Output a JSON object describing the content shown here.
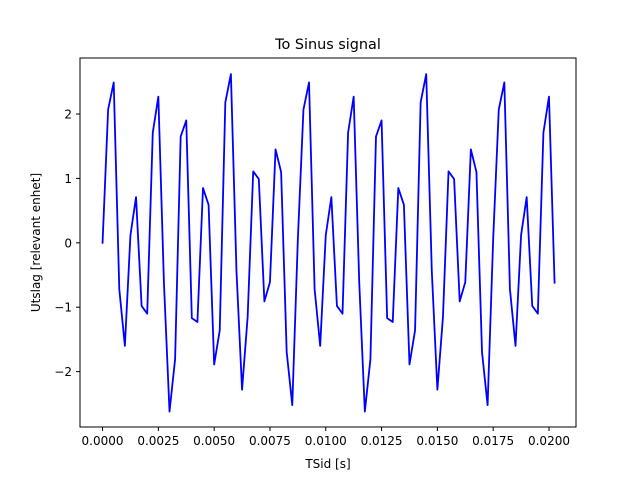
{
  "chart_data": {
    "type": "line",
    "title": "To Sinus signal",
    "xlabel": "TSid [s]",
    "ylabel": "Utslag [relevant enhet]",
    "xlim": [
      -0.00101,
      0.02121
    ],
    "ylim": [
      -2.86,
      2.87
    ],
    "xticks": [
      0.0,
      0.0025,
      0.005,
      0.0075,
      0.01,
      0.0125,
      0.015,
      0.0175,
      0.02
    ],
    "xtick_labels": [
      "0.0000",
      "0.0025",
      "0.0050",
      "0.0075",
      "0.0100",
      "0.0125",
      "0.0150",
      "0.0175",
      "0.0200"
    ],
    "yticks": [
      -2,
      -1,
      0,
      1,
      2
    ],
    "ytick_labels": [
      "−2",
      "−1",
      "0",
      "1",
      "2"
    ],
    "grid": false,
    "series": [
      {
        "color": "#0000ff",
        "sample_interval_s": 0.00025,
        "x_start": 0.0,
        "x_end": 0.02025,
        "values": [
          0.0,
          2.07,
          2.49,
          -0.72,
          -1.6,
          0.12,
          0.71,
          -0.98,
          -1.1,
          1.71,
          2.27,
          -0.62,
          -2.62,
          -1.81,
          1.65,
          1.9,
          -1.17,
          -1.23,
          0.85,
          0.59,
          -1.89,
          -1.36,
          2.18,
          2.62,
          -0.44,
          -2.28,
          -1.15,
          1.11,
          0.99,
          -0.91,
          -0.61,
          1.45,
          1.1,
          -1.7,
          -2.52,
          0.06,
          2.07,
          2.49,
          -0.72,
          -1.6,
          0.12,
          0.71,
          -0.98,
          -1.1,
          1.71,
          2.27,
          -0.62,
          -2.62,
          -1.81,
          1.65,
          1.9,
          -1.17,
          -1.23,
          0.85,
          0.59,
          -1.89,
          -1.36,
          2.18,
          2.62,
          -0.44,
          -2.28,
          -1.15,
          1.11,
          0.99,
          -0.91,
          -0.61,
          1.45,
          1.1,
          -1.7,
          -2.52,
          0.06,
          2.07,
          2.49,
          -0.72,
          -1.6,
          0.12,
          0.71,
          -0.98,
          -1.1,
          1.71,
          2.27,
          -0.62
        ]
      }
    ]
  }
}
